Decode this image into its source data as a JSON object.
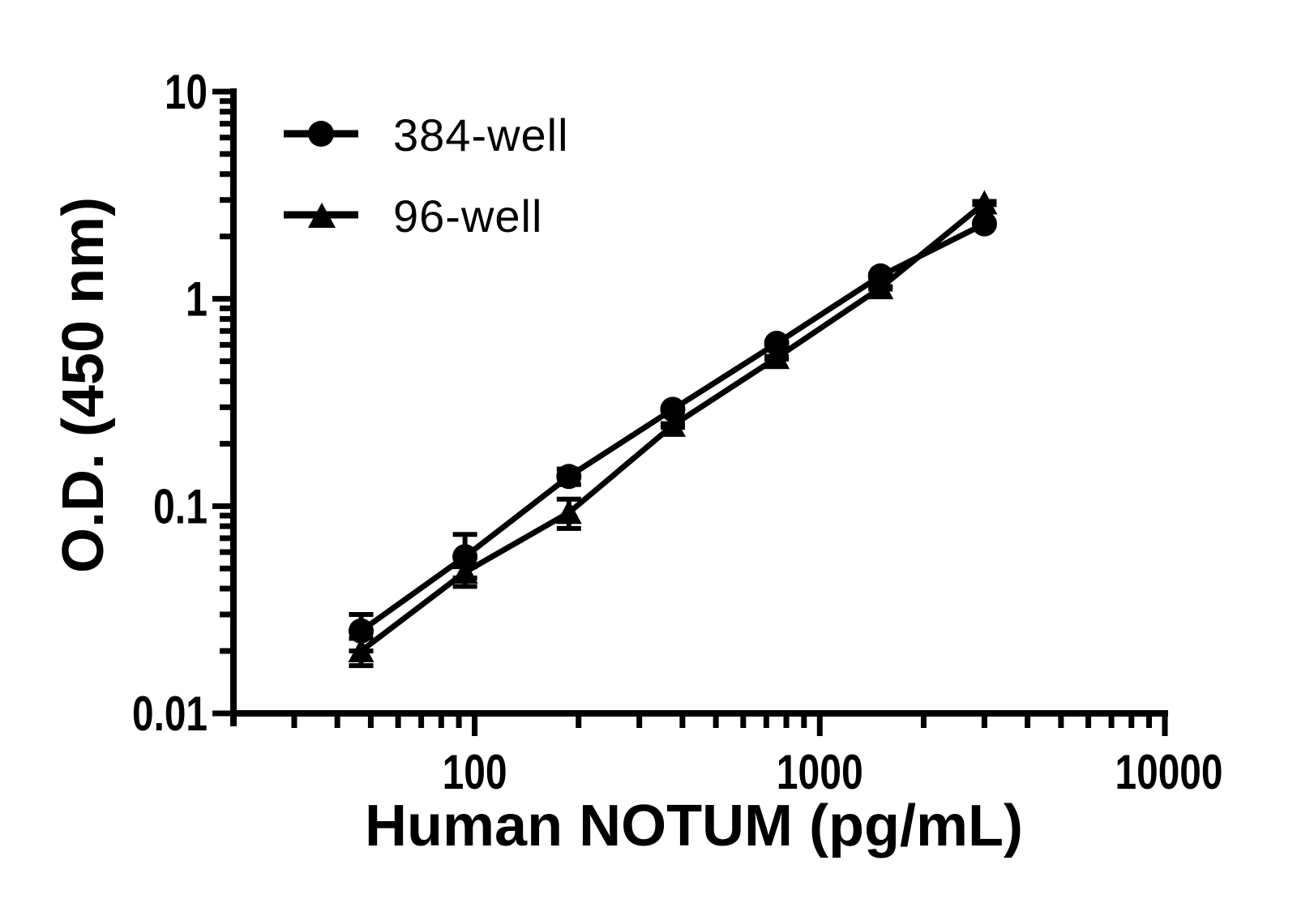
{
  "figure": {
    "background_color": "#ffffff",
    "ink_color": "#000000"
  },
  "chart_data": {
    "type": "line",
    "title": "",
    "xlabel": "Human NOTUM (pg/mL)",
    "ylabel": "O.D. (450 nm)",
    "x_scale": "log",
    "y_scale": "log",
    "xlim": [
      20,
      10000
    ],
    "ylim": [
      0.01,
      10
    ],
    "grid": false,
    "x_major_ticks": [
      100,
      1000,
      10000
    ],
    "x_major_tick_labels": [
      "100",
      "1000",
      "10000"
    ],
    "y_major_ticks": [
      0.01,
      0.1,
      1,
      10
    ],
    "y_major_tick_labels": [
      "0.01",
      "0.1",
      "1",
      "10"
    ],
    "legend_position": "inside-top-left",
    "x": [
      46.88,
      93.75,
      187.5,
      375,
      750,
      1500,
      3000
    ],
    "series": [
      {
        "name": "384-well",
        "marker": "circle",
        "color": "#000000",
        "od": [
          0.025,
          0.057,
          0.139,
          0.293,
          0.61,
          1.29,
          2.3
        ],
        "sd": [
          0.005,
          0.016,
          0.012,
          0.006,
          0.01,
          0.02,
          0.04
        ]
      },
      {
        "name": "96-well",
        "marker": "triangle",
        "color": "#000000",
        "od": [
          0.02,
          0.048,
          0.093,
          0.245,
          0.52,
          1.13,
          2.9
        ],
        "sd": [
          0.003,
          0.003,
          0.015,
          0.005,
          0.008,
          0.015,
          0.05
        ]
      }
    ],
    "colors": {
      "ink": "#000000",
      "background": "#ffffff"
    }
  }
}
